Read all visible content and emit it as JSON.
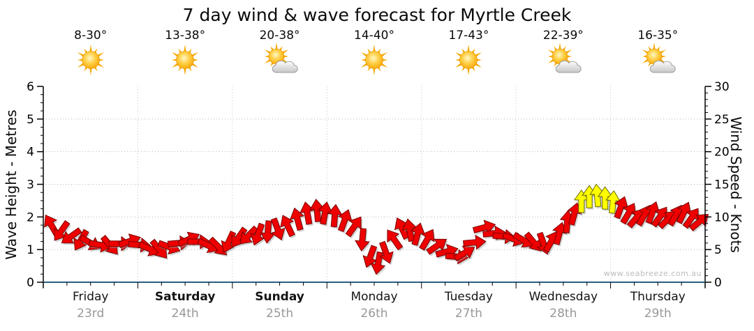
{
  "title": "7 day wind & wave forecast for Myrtle Creek",
  "watermark": "www.seabreeze.com.au",
  "axes": {
    "left": {
      "label": "Wave Height - Metres",
      "ticks": [
        0,
        1,
        2,
        3,
        4,
        5,
        6
      ],
      "range": [
        0,
        6
      ]
    },
    "right": {
      "label": "Wind Speed - Knots",
      "ticks": [
        0,
        5,
        10,
        15,
        20,
        25,
        30
      ],
      "range": [
        0,
        30
      ]
    }
  },
  "days": [
    {
      "name": "Friday",
      "date": "23rd",
      "temp": "8-30°",
      "icon": "sun",
      "bold": false
    },
    {
      "name": "Saturday",
      "date": "24th",
      "temp": "13-38°",
      "icon": "sun",
      "bold": true
    },
    {
      "name": "Sunday",
      "date": "25th",
      "temp": "20-38°",
      "icon": "sun-cloud",
      "bold": true
    },
    {
      "name": "Monday",
      "date": "26th",
      "temp": "14-40°",
      "icon": "sun",
      "bold": false
    },
    {
      "name": "Tuesday",
      "date": "27th",
      "temp": "17-43°",
      "icon": "sun",
      "bold": false
    },
    {
      "name": "Wednesday",
      "date": "28th",
      "temp": "22-39°",
      "icon": "sun-cloud",
      "bold": false
    },
    {
      "name": "Thursday",
      "date": "29th",
      "temp": "16-35°",
      "icon": "sun-cloud",
      "bold": false
    }
  ],
  "chart_data": {
    "type": "wind-arrow-series",
    "title": "7 day wind & wave forecast for Myrtle Creek",
    "categories": [
      "Friday 23rd",
      "Saturday 24th",
      "Sunday 25th",
      "Monday 26th",
      "Tuesday 27th",
      "Wednesday 28th",
      "Thursday 29th"
    ],
    "temps": [
      "8-30°",
      "13-38°",
      "20-38°",
      "14-40°",
      "17-43°",
      "22-39°",
      "16-35°"
    ],
    "sky_icons": [
      "sun",
      "sun",
      "sun-cloud",
      "sun",
      "sun",
      "sun-cloud",
      "sun-cloud"
    ],
    "x_unit": "hours_from_friday_00",
    "x_range": [
      0,
      168
    ],
    "y_left": {
      "label": "Wave Height - Metres",
      "range": [
        0,
        6
      ],
      "gridlines": [
        1,
        2,
        3,
        4,
        5
      ]
    },
    "y_right": {
      "label": "Wind Speed - Knots",
      "range": [
        0,
        30
      ],
      "minor_tick": 1
    },
    "grid": "dotted",
    "colors": {
      "red": "#ee0000",
      "yellow": "#ffff00",
      "baseline": "#2a5e80"
    },
    "arrow_legend": {
      "r": "light wind (red)",
      "y": "moderate wind (yellow)"
    },
    "arrows": [
      [
        2,
        8.8,
        -30,
        "r"
      ],
      [
        4.5,
        7.8,
        215,
        "r"
      ],
      [
        7,
        7.0,
        235,
        "r"
      ],
      [
        9.5,
        6.4,
        210,
        "r"
      ],
      [
        12,
        6.0,
        120,
        "r"
      ],
      [
        14.5,
        5.7,
        100,
        "r"
      ],
      [
        17,
        5.6,
        140,
        "r"
      ],
      [
        19.5,
        5.9,
        90,
        "r"
      ],
      [
        22,
        6.3,
        70,
        "r"
      ],
      [
        24.5,
        5.7,
        95,
        "r"
      ],
      [
        27,
        5.1,
        115,
        "r"
      ],
      [
        29.5,
        5.0,
        140,
        "r"
      ],
      [
        32,
        5.4,
        110,
        "r"
      ],
      [
        34.5,
        6.0,
        85,
        "r"
      ],
      [
        37,
        6.6,
        65,
        "r"
      ],
      [
        39.5,
        6.2,
        90,
        "r"
      ],
      [
        42,
        5.6,
        115,
        "r"
      ],
      [
        44.5,
        5.4,
        135,
        "r"
      ],
      [
        47,
        6.1,
        205,
        "r"
      ],
      [
        49.5,
        6.8,
        215,
        "r"
      ],
      [
        52,
        7.1,
        225,
        "r"
      ],
      [
        54.5,
        7.3,
        200,
        "r"
      ],
      [
        57,
        7.7,
        185,
        "r"
      ],
      [
        59.5,
        8.1,
        160,
        "r"
      ],
      [
        62,
        8.7,
        -25,
        "r"
      ],
      [
        64.5,
        9.7,
        -15,
        "r"
      ],
      [
        67,
        10.6,
        -10,
        "r"
      ],
      [
        69.5,
        11.0,
        -5,
        "r"
      ],
      [
        71.5,
        10.6,
        10,
        "r"
      ],
      [
        74,
        10.2,
        5,
        "r"
      ],
      [
        76.5,
        9.5,
        20,
        "r"
      ],
      [
        79,
        8.6,
        35,
        "r"
      ],
      [
        81,
        6.5,
        185,
        "r"
      ],
      [
        83,
        3.9,
        200,
        "r"
      ],
      [
        85,
        2.9,
        190,
        "r"
      ],
      [
        87,
        4.5,
        160,
        "r"
      ],
      [
        89,
        6.6,
        -35,
        "r"
      ],
      [
        91,
        8.3,
        -25,
        "r"
      ],
      [
        93,
        8.0,
        -10,
        "r"
      ],
      [
        95,
        7.4,
        15,
        "r"
      ],
      [
        97.5,
        6.6,
        30,
        "r"
      ],
      [
        100,
        5.6,
        55,
        "r"
      ],
      [
        102.5,
        4.7,
        75,
        "r"
      ],
      [
        105,
        3.9,
        95,
        "r"
      ],
      [
        107,
        4.5,
        60,
        "r"
      ],
      [
        109.5,
        6.1,
        85,
        "r"
      ],
      [
        112,
        8.4,
        75,
        "r"
      ],
      [
        114.5,
        7.5,
        85,
        "r"
      ],
      [
        117,
        7.0,
        95,
        "r"
      ],
      [
        119.5,
        6.6,
        110,
        "r"
      ],
      [
        122,
        6.4,
        120,
        "r"
      ],
      [
        124.5,
        6.1,
        140,
        "r"
      ],
      [
        127,
        5.9,
        160,
        "r"
      ],
      [
        129,
        6.3,
        30,
        "r"
      ],
      [
        131,
        7.5,
        15,
        "r"
      ],
      [
        133,
        9.3,
        5,
        "r"
      ],
      [
        134.8,
        10.5,
        15,
        "r"
      ],
      [
        136.6,
        12.4,
        0,
        "y"
      ],
      [
        138.6,
        13.1,
        0,
        "y"
      ],
      [
        140.6,
        13.3,
        -5,
        "y"
      ],
      [
        142.6,
        12.9,
        0,
        "y"
      ],
      [
        144.6,
        12.3,
        5,
        "y"
      ],
      [
        146.6,
        11.5,
        20,
        "r"
      ],
      [
        148.6,
        10.6,
        30,
        "r"
      ],
      [
        150.6,
        9.9,
        40,
        "r"
      ],
      [
        152.6,
        10.3,
        30,
        "r"
      ],
      [
        154.6,
        10.7,
        20,
        "r"
      ],
      [
        156.6,
        10.1,
        35,
        "r"
      ],
      [
        158.6,
        9.7,
        45,
        "r"
      ],
      [
        160.6,
        10.3,
        30,
        "r"
      ],
      [
        162.6,
        10.7,
        25,
        "r"
      ],
      [
        164.6,
        9.9,
        35,
        "r"
      ],
      [
        166.6,
        9.3,
        50,
        "r"
      ]
    ]
  }
}
